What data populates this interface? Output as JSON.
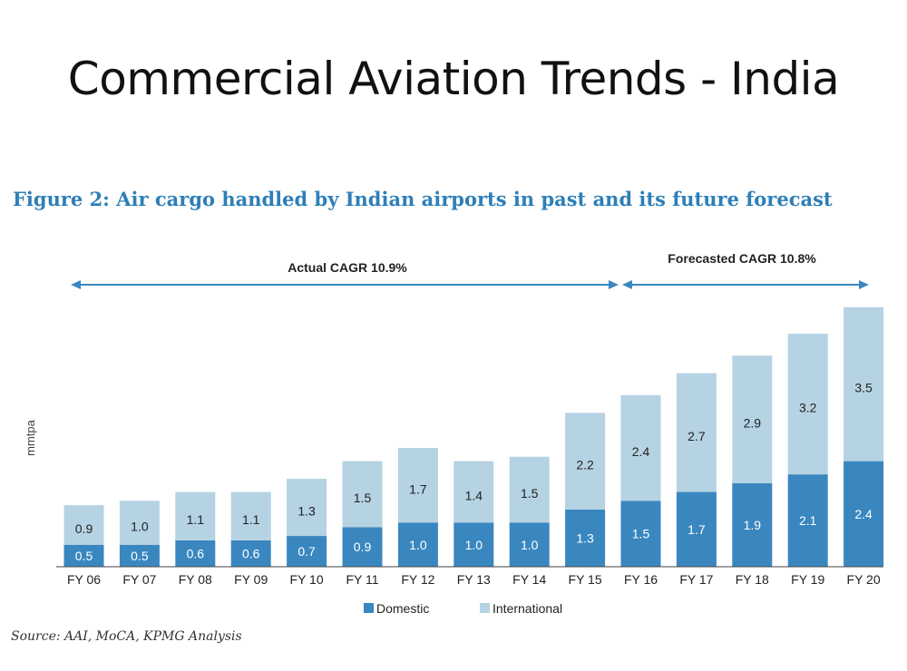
{
  "slide": {
    "title": "Commercial Aviation Trends - India",
    "figure_title": "Figure 2: Air cargo handled by Indian airports in past and its future forecast",
    "source": "Source: AAI, MoCA, KPMG Analysis"
  },
  "chart_data": {
    "type": "bar",
    "stacked": true,
    "title": "Figure 2: Air cargo handled by Indian airports in past and its future forecast",
    "xlabel": "",
    "ylabel": "mmtpa",
    "categories": [
      "FY 06",
      "FY 07",
      "FY 08",
      "FY 09",
      "FY 10",
      "FY 11",
      "FY 12",
      "FY 13",
      "FY 14",
      "FY 15",
      "FY 16",
      "FY 17",
      "FY 18",
      "FY 19",
      "FY 20"
    ],
    "series": [
      {
        "name": "Domestic",
        "color": "#3a87c0",
        "values": [
          0.5,
          0.5,
          0.6,
          0.6,
          0.7,
          0.9,
          1.0,
          1.0,
          1.0,
          1.3,
          1.5,
          1.7,
          1.9,
          2.1,
          2.4
        ]
      },
      {
        "name": "International",
        "color": "#b5d3e3",
        "values": [
          0.9,
          1.0,
          1.1,
          1.1,
          1.3,
          1.5,
          1.7,
          1.4,
          1.5,
          2.2,
          2.4,
          2.7,
          2.9,
          3.2,
          3.5
        ]
      }
    ],
    "annotations": [
      {
        "text": "Actual CAGR 10.9%",
        "from": "FY 06",
        "to": "FY 15"
      },
      {
        "text": "Forecasted CAGR 10.8%",
        "from": "FY 16",
        "to": "FY 20"
      }
    ],
    "ylim": [
      0,
      6
    ],
    "grid": false,
    "legend": "bottom"
  }
}
